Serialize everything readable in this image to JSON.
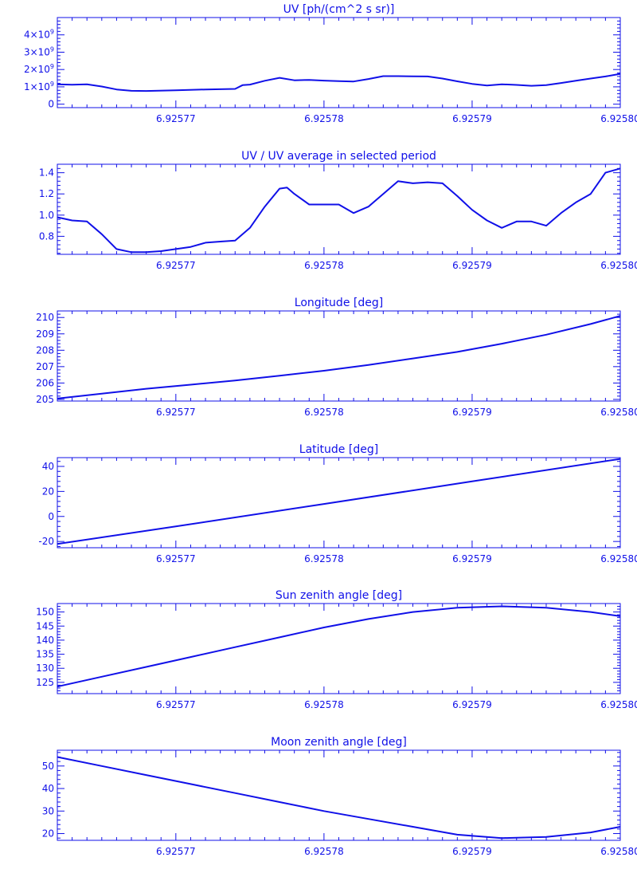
{
  "colors": {
    "ink": "#1010e8",
    "background": "#ffffff"
  },
  "chart_data": [
    {
      "type": "line",
      "title": "UV [ph/(cm^2 s sr)]",
      "xlabel": "",
      "ylabel": "",
      "xlim": [
        6.925762,
        6.9258
      ],
      "ylim": [
        -200000000,
        5000000000
      ],
      "x_ticks": [
        6.92577,
        6.92578,
        6.92579,
        6.9258
      ],
      "x_tick_labels": [
        "6.92577",
        "6.92578",
        "6.92579",
        "6.92580"
      ],
      "y_ticks": [
        0,
        1000000000,
        2000000000,
        3000000000,
        4000000000
      ],
      "y_tick_labels": [
        {
          "base": "0",
          "exp": ""
        },
        {
          "base": "1×10",
          "exp": "9"
        },
        {
          "base": "2×10",
          "exp": "9"
        },
        {
          "base": "3×10",
          "exp": "9"
        },
        {
          "base": "4×10",
          "exp": "9"
        }
      ],
      "grid": false,
      "series": [
        {
          "x": [
            6.925762,
            6.925763,
            6.925764,
            6.925765,
            6.925766,
            6.925767,
            6.925768,
            6.92577,
            6.925772,
            6.925774,
            6.9257745,
            6.925775,
            6.925776,
            6.925777,
            6.925778,
            6.925779,
            6.92578,
            6.925781,
            6.925782,
            6.925783,
            6.925784,
            6.925785,
            6.925786,
            6.925787,
            6.925788,
            6.925789,
            6.92579,
            6.925791,
            6.925792,
            6.925793,
            6.925794,
            6.925795,
            6.925796,
            6.925797,
            6.925798,
            6.925799,
            6.9258
          ],
          "y": [
            1150000000,
            1120000000,
            1150000000,
            1020000000,
            850000000,
            770000000,
            760000000,
            800000000,
            850000000,
            880000000,
            1100000000,
            1130000000,
            1350000000,
            1520000000,
            1380000000,
            1400000000,
            1360000000,
            1330000000,
            1310000000,
            1450000000,
            1620000000,
            1620000000,
            1610000000,
            1600000000,
            1480000000,
            1320000000,
            1170000000,
            1080000000,
            1150000000,
            1110000000,
            1060000000,
            1100000000,
            1220000000,
            1350000000,
            1480000000,
            1600000000,
            1750000000
          ]
        }
      ]
    },
    {
      "type": "line",
      "title": "UV / UV average in selected period",
      "xlabel": "",
      "ylabel": "",
      "xlim": [
        6.925762,
        6.9258
      ],
      "ylim": [
        0.63,
        1.48
      ],
      "x_ticks": [
        6.92577,
        6.92578,
        6.92579,
        6.9258
      ],
      "x_tick_labels": [
        "6.92577",
        "6.92578",
        "6.92579",
        "6.92580"
      ],
      "y_ticks": [
        0.8,
        1.0,
        1.2,
        1.4
      ],
      "y_tick_labels": [
        {
          "base": "0.8",
          "exp": ""
        },
        {
          "base": "1.0",
          "exp": ""
        },
        {
          "base": "1.2",
          "exp": ""
        },
        {
          "base": "1.4",
          "exp": ""
        }
      ],
      "grid": false,
      "series": [
        {
          "x": [
            6.925762,
            6.925763,
            6.925764,
            6.925765,
            6.925766,
            6.925767,
            6.925768,
            6.925769,
            6.92577,
            6.925771,
            6.925772,
            6.925773,
            6.925774,
            6.925775,
            6.925776,
            6.925777,
            6.9257775,
            6.925778,
            6.925779,
            6.92578,
            6.925781,
            6.925782,
            6.925783,
            6.925784,
            6.925785,
            6.925786,
            6.925787,
            6.925788,
            6.925789,
            6.92579,
            6.925791,
            6.925792,
            6.925793,
            6.925794,
            6.925795,
            6.925796,
            6.925797,
            6.925798,
            6.925799,
            6.9258
          ],
          "y": [
            0.98,
            0.95,
            0.94,
            0.82,
            0.68,
            0.65,
            0.65,
            0.66,
            0.68,
            0.7,
            0.74,
            0.75,
            0.76,
            0.88,
            1.08,
            1.25,
            1.26,
            1.2,
            1.1,
            1.1,
            1.1,
            1.02,
            1.08,
            1.2,
            1.32,
            1.3,
            1.31,
            1.3,
            1.18,
            1.05,
            0.95,
            0.88,
            0.94,
            0.94,
            0.9,
            1.02,
            1.12,
            1.2,
            1.4,
            1.44
          ]
        }
      ]
    },
    {
      "type": "line",
      "title": "Longitude [deg]",
      "xlabel": "",
      "ylabel": "",
      "xlim": [
        6.925762,
        6.9258
      ],
      "ylim": [
        204.9,
        210.4
      ],
      "x_ticks": [
        6.92577,
        6.92578,
        6.92579,
        6.9258
      ],
      "x_tick_labels": [
        "6.92577",
        "6.92578",
        "6.92579",
        "6.92580"
      ],
      "y_ticks": [
        205,
        206,
        207,
        208,
        209,
        210
      ],
      "y_tick_labels": [
        {
          "base": "205",
          "exp": ""
        },
        {
          "base": "206",
          "exp": ""
        },
        {
          "base": "207",
          "exp": ""
        },
        {
          "base": "208",
          "exp": ""
        },
        {
          "base": "209",
          "exp": ""
        },
        {
          "base": "210",
          "exp": ""
        }
      ],
      "grid": false,
      "series": [
        {
          "x": [
            6.925762,
            6.925765,
            6.925768,
            6.925771,
            6.925774,
            6.925777,
            6.92578,
            6.925783,
            6.925786,
            6.925789,
            6.925792,
            6.925795,
            6.925798,
            6.9258
          ],
          "y": [
            205.05,
            205.35,
            205.65,
            205.9,
            206.15,
            206.45,
            206.75,
            207.1,
            207.5,
            207.9,
            208.4,
            208.95,
            209.6,
            210.1
          ]
        }
      ]
    },
    {
      "type": "line",
      "title": "Latitude [deg]",
      "xlabel": "",
      "ylabel": "",
      "xlim": [
        6.925762,
        6.9258
      ],
      "ylim": [
        -25,
        47
      ],
      "x_ticks": [
        6.92577,
        6.92578,
        6.92579,
        6.9258
      ],
      "x_tick_labels": [
        "6.92577",
        "6.92578",
        "6.92579",
        "6.92580"
      ],
      "y_ticks": [
        -20,
        0,
        20,
        40
      ],
      "y_tick_labels": [
        {
          "base": "-20",
          "exp": ""
        },
        {
          "base": "0",
          "exp": ""
        },
        {
          "base": "20",
          "exp": ""
        },
        {
          "base": "40",
          "exp": ""
        }
      ],
      "grid": false,
      "series": [
        {
          "x": [
            6.925762,
            6.92577,
            6.92578,
            6.92579,
            6.9258
          ],
          "y": [
            -22,
            -8,
            10,
            28,
            46
          ]
        }
      ]
    },
    {
      "type": "line",
      "title": "Sun zenith angle [deg]",
      "xlabel": "",
      "ylabel": "",
      "xlim": [
        6.925762,
        6.9258
      ],
      "ylim": [
        121,
        153
      ],
      "x_ticks": [
        6.92577,
        6.92578,
        6.92579,
        6.9258
      ],
      "x_tick_labels": [
        "6.92577",
        "6.92578",
        "6.92579",
        "6.92580"
      ],
      "y_ticks": [
        125,
        130,
        135,
        140,
        145,
        150
      ],
      "y_tick_labels": [
        {
          "base": "125",
          "exp": ""
        },
        {
          "base": "130",
          "exp": ""
        },
        {
          "base": "135",
          "exp": ""
        },
        {
          "base": "140",
          "exp": ""
        },
        {
          "base": "145",
          "exp": ""
        },
        {
          "base": "150",
          "exp": ""
        }
      ],
      "grid": false,
      "series": [
        {
          "x": [
            6.925762,
            6.925765,
            6.925768,
            6.925771,
            6.925774,
            6.925777,
            6.92578,
            6.925783,
            6.925786,
            6.925789,
            6.925792,
            6.925795,
            6.925798,
            6.9258
          ],
          "y": [
            123.5,
            127,
            130.5,
            134,
            137.5,
            141,
            144.5,
            147.5,
            150,
            151.5,
            152,
            151.5,
            150,
            148.5
          ]
        }
      ]
    },
    {
      "type": "line",
      "title": "Moon zenith angle [deg]",
      "xlabel": "",
      "ylabel": "",
      "xlim": [
        6.925762,
        6.9258
      ],
      "ylim": [
        17,
        57
      ],
      "x_ticks": [
        6.92577,
        6.92578,
        6.92579,
        6.9258
      ],
      "x_tick_labels": [
        "6.92577",
        "6.92578",
        "6.92579",
        "6.92580"
      ],
      "y_ticks": [
        20,
        30,
        40,
        50
      ],
      "y_tick_labels": [
        {
          "base": "20",
          "exp": ""
        },
        {
          "base": "30",
          "exp": ""
        },
        {
          "base": "40",
          "exp": ""
        },
        {
          "base": "50",
          "exp": ""
        }
      ],
      "grid": false,
      "series": [
        {
          "x": [
            6.925762,
            6.925765,
            6.925768,
            6.925771,
            6.925774,
            6.925777,
            6.92578,
            6.925783,
            6.925786,
            6.925789,
            6.925792,
            6.925795,
            6.925798,
            6.9258
          ],
          "y": [
            54,
            50,
            46,
            42,
            38,
            34,
            30,
            26.5,
            23,
            19.5,
            18,
            18.5,
            20.5,
            23
          ]
        }
      ]
    }
  ]
}
